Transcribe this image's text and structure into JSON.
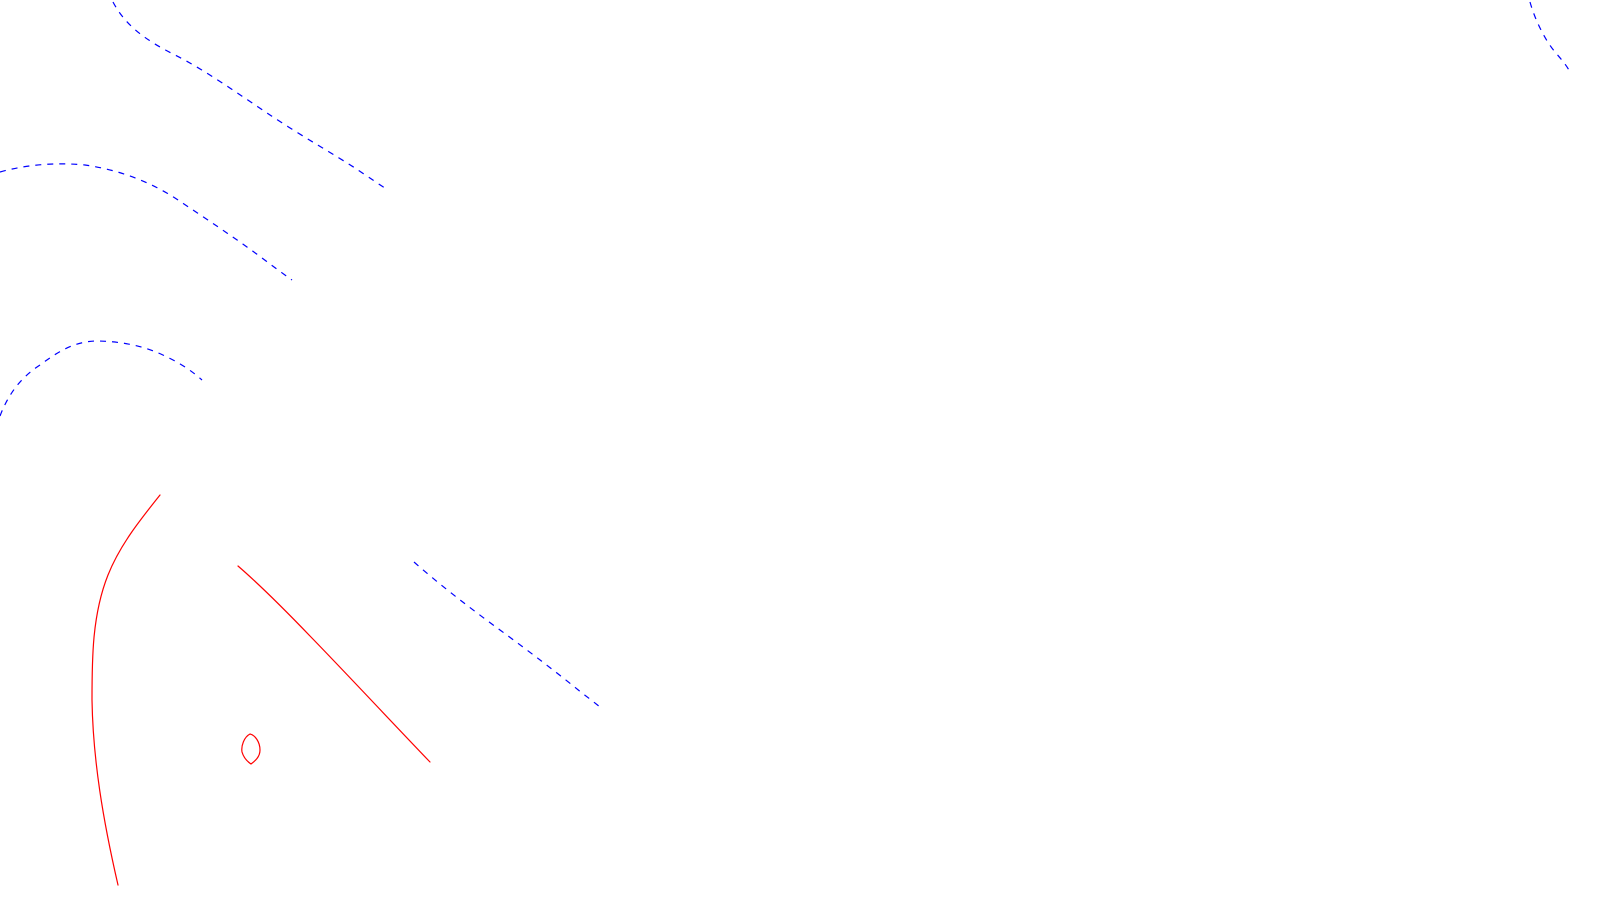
{
  "drawing": {
    "background_color": "#ffffff",
    "solid_color": "#ff0000",
    "dashed_color": "#0000ff"
  }
}
